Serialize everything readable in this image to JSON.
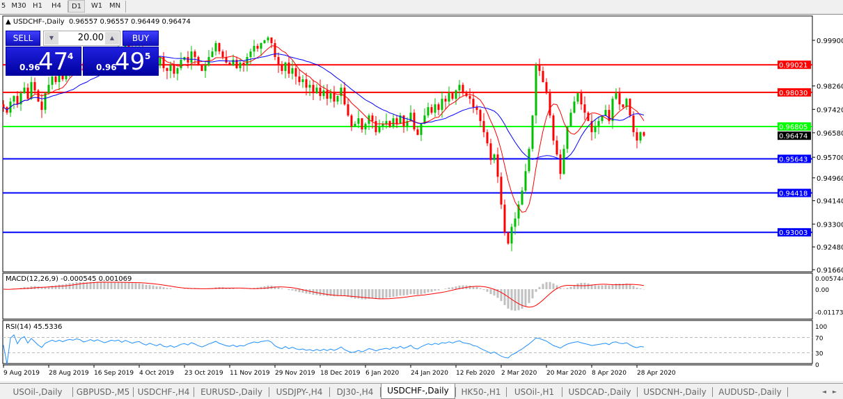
{
  "toolbar": {
    "timeframes": [
      "5",
      "M30",
      "H1",
      "H4",
      "D1",
      "W1",
      "MN"
    ],
    "active": "D1"
  },
  "chart": {
    "header": "USDCHF-,Daily  0.96557 0.96557 0.96449 0.96474",
    "trade_panel": {
      "sell_label": "SELL",
      "buy_label": "BUY",
      "lots": "20.00",
      "sell_prefix": "0.96",
      "sell_big": "47",
      "sell_sup": "4",
      "buy_prefix": "0.96",
      "buy_big": "49",
      "buy_sup": "5"
    },
    "price_ticks": [
      "0.99900",
      "0.98260",
      "0.97420",
      "0.96580",
      "0.95700",
      "0.94960",
      "0.94140",
      "0.93300",
      "0.92480",
      "0.91660"
    ],
    "hlines": [
      {
        "price": 0.99021,
        "label": "0.99021",
        "color": "#ff0000"
      },
      {
        "price": 0.9803,
        "label": "0.98030",
        "color": "#ff0000"
      },
      {
        "price": 0.96805,
        "label": "0.96805",
        "color": "#00ff00"
      },
      {
        "price": 0.95643,
        "label": "0.95643",
        "color": "#0000ff"
      },
      {
        "price": 0.94418,
        "label": "0.94418",
        "color": "#0000ff"
      },
      {
        "price": 0.93003,
        "label": "0.93003",
        "color": "#0000ff"
      }
    ],
    "current_price": {
      "price": 0.96474,
      "label": "0.96474"
    },
    "colors": {
      "bull": "#00c000",
      "bear": "#ff0000",
      "ma_fast": "#ff0000",
      "ma_slow": "#0000ff",
      "macd_hist": "#c0c0c0",
      "macd_signal": "#ff0000",
      "rsi": "#1e90ff"
    },
    "macd": {
      "label": "MACD(12,26,9) -0.000545 0.001069",
      "ticks": [
        "0.005744",
        "0.00",
        "-0.011738"
      ]
    },
    "rsi": {
      "label": "RSI(14) 45.5336",
      "ticks": [
        "100",
        "70",
        "30",
        "0"
      ]
    }
  },
  "chart_data": {
    "type": "candlestick",
    "symbol": "USDCHF-",
    "timeframe": "Daily",
    "x_tick_labels": [
      "9 Aug 2019",
      "28 Aug 2019",
      "16 Sep 2019",
      "4 Oct 2019",
      "23 Oct 2019",
      "11 Nov 2019",
      "29 Nov 2019",
      "18 Dec 2019",
      "6 Jan 2020",
      "24 Jan 2020",
      "12 Feb 2020",
      "2 Mar 2020",
      "20 Mar 2020",
      "8 Apr 2020",
      "28 Apr 2020"
    ],
    "ylim": [
      0.9166,
      0.999
    ],
    "closes": [
      0.975,
      0.973,
      0.977,
      0.979,
      0.976,
      0.98,
      0.982,
      0.978,
      0.984,
      0.981,
      0.977,
      0.974,
      0.98,
      0.983,
      0.986,
      0.984,
      0.987,
      0.985,
      0.988,
      0.99,
      0.989,
      0.992,
      0.991,
      0.988,
      0.99,
      0.993,
      0.991,
      0.994,
      0.992,
      0.99,
      0.992,
      0.995,
      0.994,
      0.996,
      0.993,
      0.997,
      0.995,
      0.993,
      0.995,
      0.996,
      0.993,
      0.991,
      0.994,
      0.992,
      0.99,
      0.993,
      0.989,
      0.988,
      0.99,
      0.987,
      0.989,
      0.992,
      0.993,
      0.991,
      0.995,
      0.993,
      0.99,
      0.988,
      0.99,
      0.993,
      0.995,
      0.998,
      0.995,
      0.993,
      0.991,
      0.99,
      0.992,
      0.989,
      0.991,
      0.99,
      0.993,
      0.995,
      0.997,
      0.996,
      0.998,
      0.999,
      1.0,
      0.998,
      0.993,
      0.99,
      0.988,
      0.991,
      0.987,
      0.989,
      0.986,
      0.984,
      0.985,
      0.982,
      0.983,
      0.98,
      0.982,
      0.979,
      0.981,
      0.978,
      0.98,
      0.977,
      0.979,
      0.982,
      0.976,
      0.972,
      0.968,
      0.969,
      0.971,
      0.967,
      0.969,
      0.972,
      0.97,
      0.966,
      0.968,
      0.969,
      0.97,
      0.968,
      0.971,
      0.969,
      0.972,
      0.968,
      0.97,
      0.973,
      0.967,
      0.965,
      0.969,
      0.972,
      0.975,
      0.973,
      0.976,
      0.974,
      0.978,
      0.977,
      0.98,
      0.978,
      0.981,
      0.983,
      0.98,
      0.979,
      0.978,
      0.975,
      0.974,
      0.97,
      0.966,
      0.962,
      0.956,
      0.958,
      0.95,
      0.94,
      0.93,
      0.926,
      0.932,
      0.935,
      0.94,
      0.945,
      0.952,
      0.96,
      0.972,
      0.99,
      0.988,
      0.984,
      0.98,
      0.972,
      0.963,
      0.958,
      0.951,
      0.96,
      0.968,
      0.973,
      0.977,
      0.98,
      0.976,
      0.973,
      0.97,
      0.966,
      0.968,
      0.97,
      0.972,
      0.974,
      0.97,
      0.978,
      0.98,
      0.976,
      0.975,
      0.978,
      0.972,
      0.966,
      0.963,
      0.966,
      0.96474
    ]
  },
  "tabs": [
    "USOil-,Daily",
    "GBPUSD-,M5",
    "USDCHF-,H4",
    "EURUSD-,Daily",
    "USDJPY-,H4",
    "DJ30-,H4",
    "USDCHF-,Daily",
    "HK50-,H1",
    "USOil-,H1",
    "USDCAD-,Daily",
    "USDCNH-,Daily",
    "AUDUSD-,Daily"
  ],
  "active_tab": "USDCHF-,Daily"
}
